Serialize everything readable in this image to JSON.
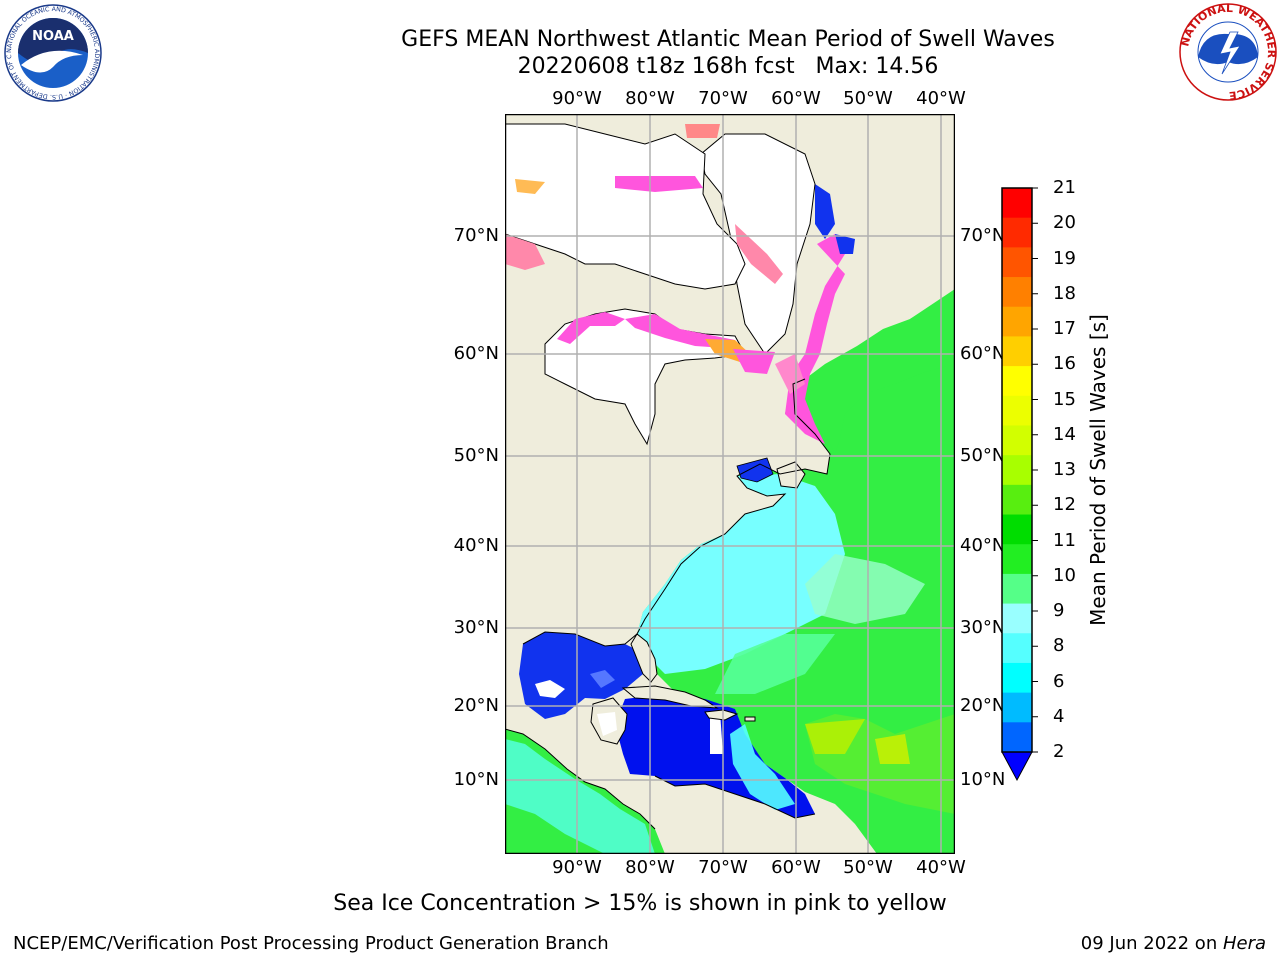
{
  "title": {
    "line1": "GEFS MEAN Northwest Atlantic Mean Period of Swell Waves",
    "line2": "20220608 t18z 168h fcst   Max: 14.56"
  },
  "map": {
    "lon_labels": [
      "90°W",
      "80°W",
      "70°W",
      "60°W",
      "50°W",
      "40°W"
    ],
    "lat_labels": [
      "70°N",
      "60°N",
      "50°N",
      "40°N",
      "30°N",
      "20°N",
      "10°N"
    ],
    "colors": {
      "land": "#efeddc",
      "ice": "#ff55dd",
      "ocean_low": "#0022ee",
      "ocean_mid": "#55ffff",
      "ocean_high": "#22ee22"
    }
  },
  "colorbar": {
    "title": "Mean Period of Swell Waves [s]",
    "levels": [
      "21",
      "20",
      "19",
      "18",
      "17",
      "16",
      "15",
      "14",
      "13",
      "12",
      "11",
      "10",
      "9",
      "8",
      "6",
      "4",
      "2"
    ],
    "colors": [
      "#ff0000",
      "#ff2a00",
      "#ff5500",
      "#ff8000",
      "#ffa500",
      "#ffcf00",
      "#ffff00",
      "#ecff00",
      "#d2ff00",
      "#a8ff00",
      "#58ee10",
      "#00dd00",
      "#22ee22",
      "#55ff88",
      "#99ffff",
      "#55ffff",
      "#00ffff",
      "#00bbff",
      "#0066ff"
    ],
    "extend_color": "#0000ff"
  },
  "footer": {
    "note": "Sea Ice Concentration > 15% is shown in pink to yellow",
    "credit": "NCEP/EMC/Verification Post Processing Product Generation Branch",
    "date": "09 Jun 2022 on ",
    "host": "Hera"
  },
  "logos": {
    "noaa_text": "NOAA",
    "noaa_ring": "NATIONAL OCEANIC AND ATMOSPHERIC ADMINISTRATION · U.S. DEPARTMENT OF COMMERCE ·",
    "nws_ring": "NATIONAL WEATHER SERVICE"
  }
}
